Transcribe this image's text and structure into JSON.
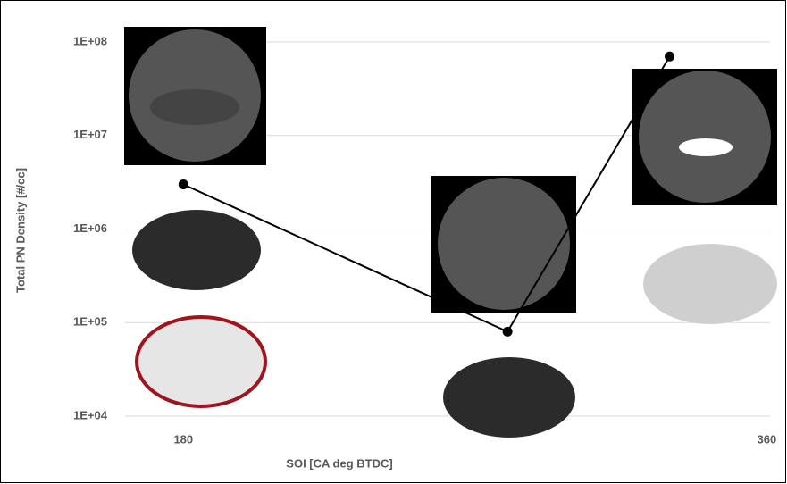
{
  "chart_data": {
    "type": "line",
    "x_label": "SOI [CA deg  BTDC]",
    "y_label": "Total PN Density [#/cc]",
    "x": [
      180,
      280,
      330
    ],
    "series": [
      {
        "color": "#000000",
        "values": [
          3000000,
          80000,
          70000000
        ]
      }
    ],
    "xlim": [
      162,
      361
    ],
    "xticks": [
      180,
      360
    ],
    "ylim": [
      10000,
      100000000
    ],
    "yticks": [
      {
        "value": 10000,
        "label": "1E+04"
      },
      {
        "value": 100000,
        "label": "1E+05"
      },
      {
        "value": 1000000,
        "label": "1E+06"
      },
      {
        "value": 10000000,
        "label": "1E+07"
      },
      {
        "value": 100000000,
        "label": "1E+08"
      }
    ],
    "log_y": true,
    "grid": true
  }
}
